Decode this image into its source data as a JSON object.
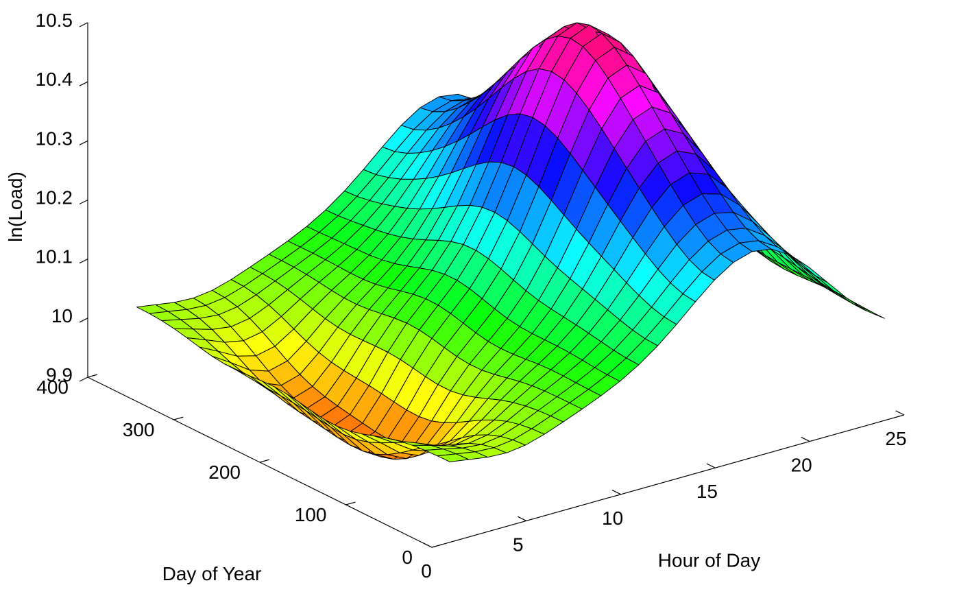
{
  "chart_data": {
    "type": "surface3d",
    "title": "",
    "xlabel": "Hour of Day",
    "ylabel": "Day of Year",
    "zlabel": "ln(Load)",
    "xlim": [
      0,
      25
    ],
    "ylim": [
      0,
      400
    ],
    "zlim": [
      9.9,
      10.5
    ],
    "x_ticks": [
      0,
      5,
      10,
      15,
      20,
      25
    ],
    "x_tick_labels": [
      "0",
      "5",
      "10",
      "15",
      "20",
      "25"
    ],
    "y_ticks": [
      0,
      100,
      200,
      300,
      400
    ],
    "y_tick_labels": [
      "0",
      "100",
      "200",
      "300",
      "400"
    ],
    "z_ticks": [
      9.9,
      10,
      10.1,
      10.2,
      10.3,
      10.4,
      10.5
    ],
    "z_tick_labels": [
      "9.9",
      "10",
      "10.1",
      "10.2",
      "10.3",
      "10.4",
      "10.5"
    ],
    "grid": false,
    "colormap": "hsv",
    "hour_range": [
      1,
      24
    ],
    "day_range": [
      1,
      365
    ],
    "surface_samples": [
      {
        "hour": 1,
        "day": 1,
        "ln_load": 10.07
      },
      {
        "hour": 1,
        "day": 365,
        "ln_load": 10.13
      },
      {
        "hour": 4,
        "day": 200,
        "ln_load": 9.93
      },
      {
        "hour": 5,
        "day": 1,
        "ln_load": 10.02
      },
      {
        "hour": 17,
        "day": 200,
        "ln_load": 10.47
      },
      {
        "hour": 18,
        "day": 1,
        "ln_load": 10.25
      },
      {
        "hour": 24,
        "day": 1,
        "ln_load": 10.04
      },
      {
        "hour": 24,
        "day": 365,
        "ln_load": 10.12
      }
    ]
  }
}
